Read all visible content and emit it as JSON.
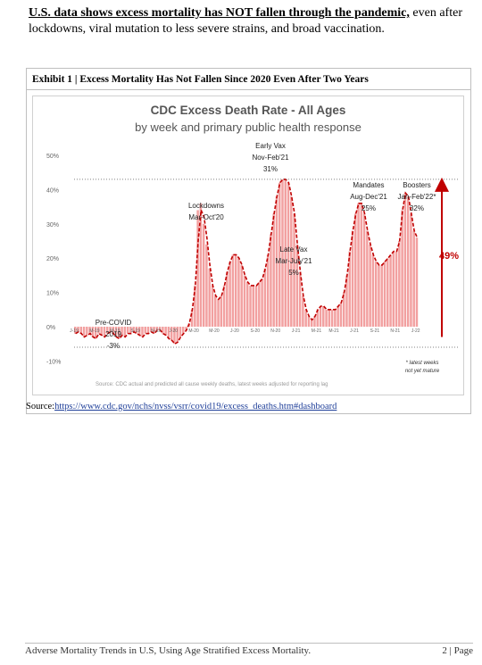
{
  "intro": {
    "bold": "U.S. data shows excess mortality has NOT fallen through the pandemic,",
    "rest": " even after lockdowns, viral mutation to less severe strains, and broad vaccination."
  },
  "exhibit": {
    "title": "Exhibit 1 | Excess Mortality Has Not Fallen Since 2020 Even After Two Years"
  },
  "source": {
    "label": "Source:",
    "url": "https://www.cdc.gov/nchs/nvss/vsrr/covid19/excess_deaths.htm#dashboard"
  },
  "footer": {
    "left": "Adverse Mortality Trends in U.S, Using Age Stratified Excess Mortality.",
    "right": "2 | Page"
  },
  "colors": {
    "bar": "#f2a0a0",
    "line": "#c00000",
    "arrow": "#c00000",
    "dotted": "#808080"
  },
  "chart_data": {
    "type": "bar",
    "title": "CDC Excess Death Rate - All Ages",
    "subtitle": "by week and primary public health response",
    "ylim": [
      -10,
      50
    ],
    "yticks": [
      "50%",
      "40%",
      "30%",
      "20%",
      "10%",
      "0%",
      "-10%"
    ],
    "ytick_values": [
      50,
      40,
      30,
      20,
      10,
      0,
      -10
    ],
    "xticks": [
      "J-19",
      "M-19",
      "M-19",
      "S-19",
      "N-19",
      "J-20",
      "M-20",
      "M-20",
      "J-20",
      "S-20",
      "N-20",
      "J-21",
      "M-21",
      "M-21",
      "J-21",
      "S-21",
      "N-21",
      "J-22"
    ],
    "values": [
      -2,
      -1.5,
      -2,
      -3,
      -2.5,
      -2,
      -3,
      -3.5,
      -2,
      -2.5,
      -3,
      -2,
      -1.5,
      -2,
      -3,
      -3.5,
      -2.5,
      -3,
      -2,
      -2,
      -1.5,
      -2,
      -2.5,
      -3,
      -2,
      -2,
      -1.5,
      -2,
      -1,
      -1,
      -2,
      -2.5,
      -3.5,
      -4,
      -5,
      -4.5,
      -3,
      -2,
      -1,
      1,
      5,
      12,
      34,
      36,
      30,
      24,
      17,
      12,
      9,
      8,
      9,
      12,
      16,
      19,
      21,
      21,
      20,
      18,
      15,
      13,
      12,
      12,
      12,
      13,
      14,
      17,
      21,
      27,
      33,
      38,
      42,
      43,
      43,
      42,
      38,
      33,
      24,
      16,
      9,
      5,
      3,
      2,
      3,
      5,
      6,
      6,
      5,
      5,
      5,
      5,
      6,
      7,
      10,
      15,
      22,
      28,
      33,
      36,
      36,
      33,
      28,
      24,
      21,
      19,
      18,
      18,
      19,
      20,
      21,
      22,
      22,
      25,
      34,
      39,
      38,
      33,
      28,
      26
    ],
    "line": [
      -2,
      -1.5,
      -2,
      -3,
      -2.5,
      -2,
      -3,
      -3.5,
      -2,
      -2.5,
      -3,
      -2,
      -1.5,
      -2,
      -3,
      -3.5,
      -2.5,
      -3,
      -2,
      -2,
      -1.5,
      -2,
      -2.5,
      -3,
      -2,
      -2,
      -1.5,
      -2,
      -1,
      -1,
      -2,
      -2.5,
      -3.5,
      -4,
      -5,
      -4.5,
      -3,
      -2,
      -1,
      1,
      5,
      12,
      25,
      34,
      32,
      26,
      18,
      12,
      9,
      8,
      9,
      12,
      16,
      19,
      21,
      21,
      20,
      18,
      15,
      13,
      12,
      12,
      12,
      13,
      14,
      17,
      21,
      27,
      33,
      38,
      42,
      43,
      43,
      42,
      38,
      33,
      24,
      16,
      9,
      5,
      3,
      2,
      3,
      5,
      6,
      6,
      5,
      5,
      5,
      5,
      6,
      7,
      10,
      15,
      22,
      28,
      33,
      36,
      36,
      33,
      28,
      24,
      21,
      19,
      18,
      18,
      19,
      20,
      21,
      22,
      22,
      25,
      34,
      39,
      38,
      33,
      28,
      26
    ],
    "reference_line": 43,
    "annotations": [
      {
        "lines": [
          "Pre-COVID",
          "2019",
          "-3%"
        ]
      },
      {
        "lines": [
          "Lockdowns",
          "Mar-Oct'20"
        ]
      },
      {
        "lines": [
          "Early Vax",
          "Nov-Feb'21",
          "31%"
        ]
      },
      {
        "lines": [
          "Late Vax",
          "Mar-July'21",
          "5%"
        ]
      },
      {
        "lines": [
          "Mandates",
          "Aug-Dec'21",
          "25%"
        ]
      },
      {
        "lines": [
          "Boosters",
          "Jan-Feb'22*",
          "32%"
        ]
      }
    ],
    "arrow_label": "49%",
    "note": [
      "* latest weeks",
      "not yet mature"
    ],
    "source_note": "Source: CDC actual and predicted all cause weekly deaths, latest weeks adjusted for reporting lag"
  }
}
